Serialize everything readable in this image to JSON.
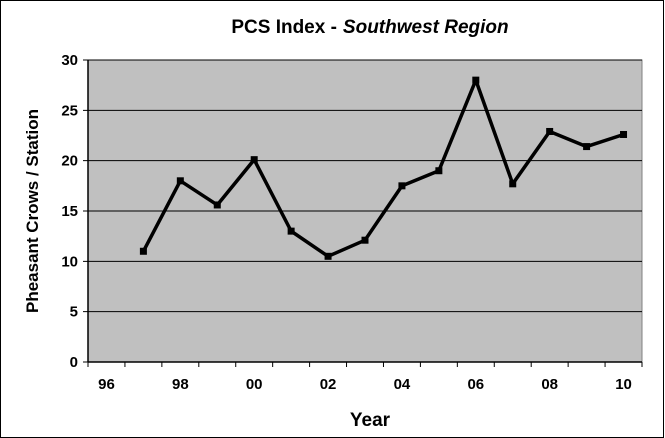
{
  "chart_data": {
    "type": "line",
    "title": "PCS Index -",
    "title_region": "Southwest Region",
    "x_label": "Year",
    "y_label": "Pheasant Crows / Station",
    "categories": [
      "96",
      null,
      "98",
      null,
      "00",
      null,
      "02",
      null,
      "04",
      null,
      "06",
      null,
      "08",
      null,
      "10"
    ],
    "values": [
      null,
      11,
      18,
      15.6,
      20.1,
      13,
      10.5,
      12.1,
      17.5,
      19,
      28,
      17.7,
      22.9,
      21.4,
      22.6
    ],
    "color": "#000000",
    "ylim": [
      0,
      30
    ],
    "yticks": [
      0,
      5,
      10,
      15,
      20,
      25,
      30
    ],
    "grid": true
  }
}
